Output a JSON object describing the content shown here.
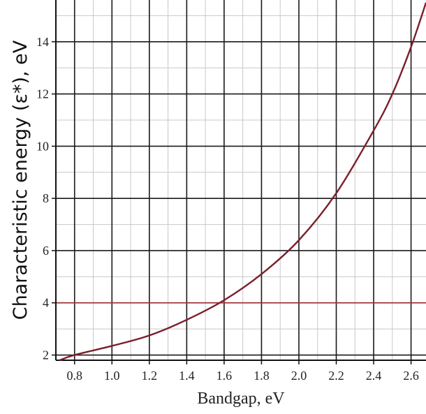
{
  "chart_data": {
    "type": "line",
    "title": "",
    "xlabel": "Bandgap, eV",
    "ylabel": "Characteristic energy (ε*), eV",
    "xlim": [
      0.7,
      2.68
    ],
    "ylim": [
      1.8,
      15.6
    ],
    "x_ticks": [
      0.8,
      1.0,
      1.2,
      1.4,
      1.6,
      1.8,
      2.0,
      2.2,
      2.4,
      2.6
    ],
    "x_tick_labels": [
      "0.8",
      "1.0",
      "1.2",
      "1.4",
      "1.6",
      "1.8",
      "2.0",
      "2.2",
      "2.4",
      "2.6"
    ],
    "y_ticks": [
      2,
      4,
      6,
      8,
      10,
      12,
      14
    ],
    "y_tick_labels": [
      "2",
      "4",
      "6",
      "8",
      "10",
      "12",
      "14"
    ],
    "grid": true,
    "legend": "none",
    "series": [
      {
        "color": "#7a1f2b",
        "points": [
          [
            0.72,
            1.8
          ],
          [
            0.8,
            2.0
          ],
          [
            1.0,
            2.35
          ],
          [
            1.2,
            2.75
          ],
          [
            1.4,
            3.35
          ],
          [
            1.6,
            4.1
          ],
          [
            1.8,
            5.1
          ],
          [
            2.0,
            6.4
          ],
          [
            2.2,
            8.2
          ],
          [
            2.4,
            10.6
          ],
          [
            2.5,
            12.0
          ],
          [
            2.6,
            13.8
          ],
          [
            2.68,
            15.5
          ]
        ]
      }
    ],
    "highlight_lines": [
      {
        "axis": "y",
        "value": 4,
        "color": "#a0303a"
      }
    ]
  }
}
